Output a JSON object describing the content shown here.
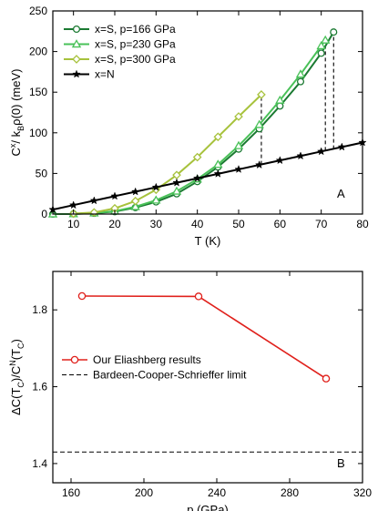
{
  "chart_data": [
    {
      "type": "line",
      "panel_label": "A",
      "xlabel": "T (K)",
      "ylabel": "C^x / k_B ρ(0) (meV)",
      "ylabel_parts": {
        "main": "C",
        "sup": "x",
        "mid1": "/ k",
        "sub": "B",
        "mid2": "ρ(0) (meV)"
      },
      "xlim": [
        5,
        80
      ],
      "ylim": [
        0,
        250
      ],
      "xticks": [
        10,
        20,
        30,
        40,
        50,
        60,
        70,
        80
      ],
      "yticks": [
        0,
        50,
        100,
        150,
        200,
        250
      ],
      "legend_position": "top-left",
      "series": [
        {
          "name": "x=S, p=166 GPa",
          "color": "#1b7a32",
          "marker": "circle",
          "x": [
            5,
            10,
            15,
            20,
            25,
            30,
            35,
            40,
            45,
            50,
            55,
            60,
            65,
            70,
            73
          ],
          "y": [
            0,
            0.2,
            1,
            3,
            8,
            15,
            25,
            40,
            58,
            80,
            105,
            133,
            163,
            198,
            224
          ]
        },
        {
          "name": "x=S, p=230 GPa",
          "color": "#49c158",
          "marker": "triangle",
          "x": [
            5,
            10,
            15,
            20,
            25,
            30,
            35,
            40,
            45,
            50,
            55,
            60,
            65,
            70,
            71
          ],
          "y": [
            0,
            0.2,
            1.2,
            3.5,
            9,
            17,
            28,
            43,
            61,
            84,
            110,
            140,
            172,
            207,
            214
          ]
        },
        {
          "name": "x=S, p=300 GPa",
          "color": "#a7c23c",
          "marker": "diamond",
          "x": [
            10,
            15,
            20,
            25,
            30,
            35,
            40,
            45,
            50,
            55.5
          ],
          "y": [
            0.5,
            2,
            7,
            16,
            30,
            48,
            70,
            95,
            120,
            147
          ]
        },
        {
          "name": "x=N",
          "color": "#000000",
          "marker": "star",
          "x": [
            5,
            10,
            15,
            20,
            25,
            30,
            35,
            40,
            45,
            50,
            55,
            60,
            65,
            70,
            75,
            80
          ],
          "y": [
            5.5,
            11,
            16.5,
            22,
            27.5,
            33,
            38.5,
            44,
            49.5,
            55,
            60.5,
            66,
            71.5,
            77,
            82.5,
            88
          ]
        }
      ],
      "dashed_verticals": [
        {
          "x": 55.5,
          "y_from": 61,
          "y_to": 147
        },
        {
          "x": 71,
          "y_from": 78,
          "y_to": 214
        },
        {
          "x": 73,
          "y_from": 80,
          "y_to": 224
        }
      ]
    },
    {
      "type": "line",
      "panel_label": "B",
      "xlabel": "p (GPa)",
      "ylabel": "ΔC(T_C)/C^N(T_C)",
      "ylabel_parts": {
        "a": "ΔC(T",
        "s1": "C",
        "b": ")/C",
        "sup": "N",
        "c": "(T",
        "s2": "C",
        "d": ")"
      },
      "xlim": [
        150,
        320
      ],
      "ylim": [
        1.35,
        1.9
      ],
      "xticks": [
        160,
        200,
        240,
        280,
        320
      ],
      "yticks": [
        1.4,
        1.6,
        1.8
      ],
      "legend_position": "center-left",
      "series": [
        {
          "name": "Our Eliashberg results",
          "color": "#e0201b",
          "marker": "circle",
          "x": [
            166,
            230,
            300
          ],
          "y": [
            1.836,
            1.835,
            1.621
          ]
        }
      ],
      "reference_line": {
        "name": "Bardeen-Cooper-Schrieffer limit",
        "y": 1.43,
        "style": "dashed",
        "color": "#000000"
      }
    }
  ]
}
